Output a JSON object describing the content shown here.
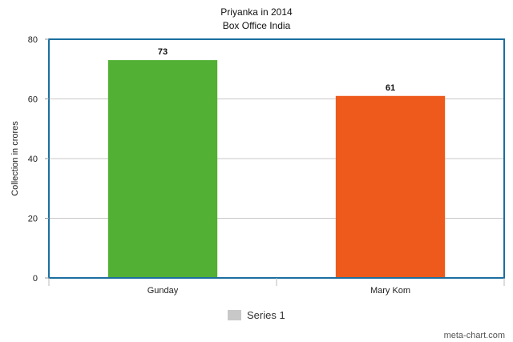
{
  "chart_data": {
    "type": "bar",
    "title": "Priyanka in 2014",
    "subtitle": "Box Office India",
    "categories": [
      "Gunday",
      "Mary Kom"
    ],
    "series": [
      {
        "name": "Series 1",
        "values": [
          73,
          61
        ],
        "colors": [
          "#52b034",
          "#ee5a1c"
        ]
      }
    ],
    "data_labels": [
      "73",
      "61"
    ],
    "xlabel": "",
    "ylabel": "Collection in crores",
    "ylim": [
      0,
      80
    ],
    "yticks": [
      0,
      20,
      40,
      60,
      80
    ],
    "grid": true,
    "legend": {
      "placement": "bottom",
      "swatch_color": "#c8c8c8"
    },
    "frame_color": "#1a6fa0"
  },
  "watermark": "meta-chart.com"
}
